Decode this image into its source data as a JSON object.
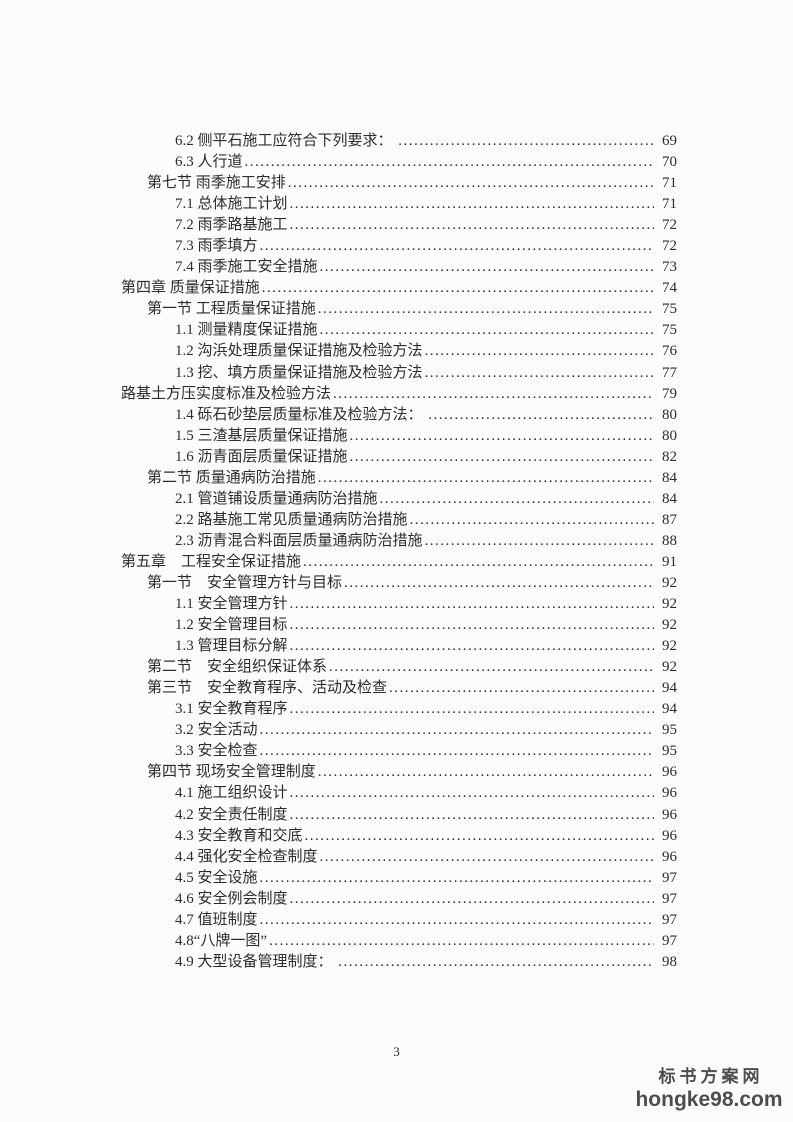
{
  "page": {
    "number": "3",
    "background_color": "#fcfcfc",
    "text_color": "#2c2c2c"
  },
  "toc": {
    "entries": [
      {
        "level": 2,
        "text": "6.2 侧平石施工应符合下列要求： ",
        "page": "69"
      },
      {
        "level": 2,
        "text": "6.3 人行道",
        "page": "70"
      },
      {
        "level": 1,
        "text": "第七节 雨季施工安排",
        "page": "71"
      },
      {
        "level": 2,
        "text": "7.1 总体施工计划",
        "page": "71"
      },
      {
        "level": 2,
        "text": "7.2 雨季路基施工",
        "page": "72"
      },
      {
        "level": 2,
        "text": "7.3 雨季填方",
        "page": "72"
      },
      {
        "level": 2,
        "text": "7.4 雨季施工安全措施",
        "page": "73"
      },
      {
        "level": 0,
        "text": "第四章 质量保证措施",
        "page": "74"
      },
      {
        "level": 1,
        "text": "第一节 工程质量保证措施",
        "page": "75"
      },
      {
        "level": 2,
        "text": "1.1 测量精度保证措施",
        "page": "75"
      },
      {
        "level": 2,
        "text": "1.2 沟浜处理质量保证措施及检验方法",
        "page": "76"
      },
      {
        "level": 2,
        "text": "1.3 挖、填方质量保证措施及检验方法",
        "page": "77"
      },
      {
        "level": 0,
        "text": "路基土方压实度标准及检验方法",
        "page": "79"
      },
      {
        "level": 2,
        "text": "1.4 砾石砂垫层质量标准及检验方法： ",
        "page": "80"
      },
      {
        "level": 2,
        "text": "1.5 三渣基层质量保证措施",
        "page": "80"
      },
      {
        "level": 2,
        "text": "1.6 沥青面层质量保证措施",
        "page": "82"
      },
      {
        "level": 1,
        "text": "第二节 质量通病防治措施",
        "page": "84"
      },
      {
        "level": 2,
        "text": "2.1 管道铺设质量通病防治措施",
        "page": "84"
      },
      {
        "level": 2,
        "text": "2.2 路基施工常见质量通病防治措施",
        "page": "87"
      },
      {
        "level": 2,
        "text": "2.3 沥青混合料面层质量通病防治措施",
        "page": "88"
      },
      {
        "level": 0,
        "text": "第五章　工程安全保证措施",
        "page": "91"
      },
      {
        "level": 1,
        "text": "第一节　安全管理方针与目标",
        "page": "92"
      },
      {
        "level": 2,
        "text": "1.1 安全管理方针",
        "page": "92"
      },
      {
        "level": 2,
        "text": "1.2 安全管理目标",
        "page": "92"
      },
      {
        "level": 2,
        "text": "1.3 管理目标分解",
        "page": "92"
      },
      {
        "level": 1,
        "text": "第二节　安全组织保证体系",
        "page": "92"
      },
      {
        "level": 1,
        "text": "第三节　安全教育程序、活动及检查",
        "page": "94"
      },
      {
        "level": 2,
        "text": "3.1 安全教育程序",
        "page": "94"
      },
      {
        "level": 2,
        "text": "3.2 安全活动",
        "page": "95"
      },
      {
        "level": 2,
        "text": "3.3 安全检查",
        "page": "95"
      },
      {
        "level": 1,
        "text": "第四节 现场安全管理制度",
        "page": "96"
      },
      {
        "level": 2,
        "text": "4.1 施工组织设计",
        "page": "96"
      },
      {
        "level": 2,
        "text": "4.2 安全责任制度",
        "page": "96"
      },
      {
        "level": 2,
        "text": "4.3 安全教育和交底",
        "page": "96"
      },
      {
        "level": 2,
        "text": "4.4 强化安全检查制度",
        "page": "96"
      },
      {
        "level": 2,
        "text": "4.5 安全设施",
        "page": "97"
      },
      {
        "level": 2,
        "text": "4.6 安全例会制度",
        "page": "97"
      },
      {
        "level": 2,
        "text": "4.7 值班制度",
        "page": "97"
      },
      {
        "level": 2,
        "text": "4.8“八牌一图”",
        "page": "97"
      },
      {
        "level": 2,
        "text": "4.9 大型设备管理制度： ",
        "page": "98"
      }
    ]
  },
  "watermark": {
    "line1": "标书方案网",
    "line2": "hongke98.com",
    "color": "#4d4d4d"
  }
}
